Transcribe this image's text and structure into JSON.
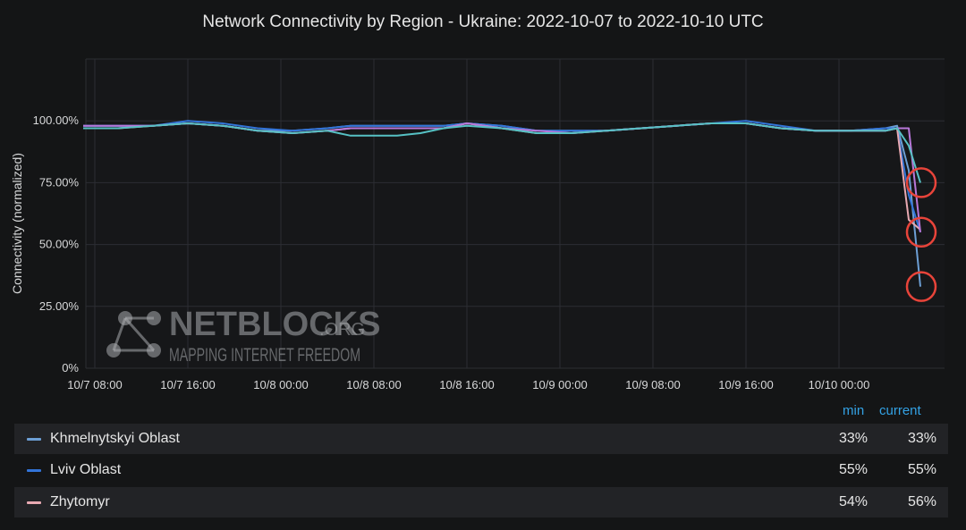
{
  "chart_data": {
    "type": "line",
    "title": "Network Connectivity by Region - Ukraine: 2022-10-07 to 2022-10-10 UTC",
    "ylabel": "Connectivity (normalized)",
    "xlabel": "",
    "y_ticks": [
      "0%",
      "25.00%",
      "50.00%",
      "75.00%",
      "100.00%"
    ],
    "ylim": [
      0,
      125
    ],
    "x_ticks": [
      "10/7 08:00",
      "10/7 16:00",
      "10/8 00:00",
      "10/8 08:00",
      "10/8 16:00",
      "10/9 00:00",
      "10/9 08:00",
      "10/9 16:00",
      "10/10 00:00"
    ],
    "x": [
      "10/7 07:00",
      "10/7 10:00",
      "10/7 13:00",
      "10/7 16:00",
      "10/7 19:00",
      "10/7 22:00",
      "10/8 01:00",
      "10/8 04:00",
      "10/8 06:00",
      "10/8 08:00",
      "10/8 10:00",
      "10/8 12:00",
      "10/8 14:00",
      "10/8 16:00",
      "10/8 19:00",
      "10/8 22:00",
      "10/9 01:00",
      "10/9 04:00",
      "10/9 07:00",
      "10/9 10:00",
      "10/9 13:00",
      "10/9 16:00",
      "10/9 19:00",
      "10/9 22:00",
      "10/10 01:00",
      "10/10 04:00",
      "10/10 05:00",
      "10/10 06:00",
      "10/10 07:00"
    ],
    "grid": true,
    "legend_placement": "bottom table",
    "legend_headers": {
      "min": "min",
      "current": "current"
    },
    "annotations": [
      "red circles around the final values at about 75%, 55% and 33%"
    ],
    "series": [
      {
        "name": "Khmelnytskyi Oblast",
        "color": "#6d9fd5",
        "min": "33%",
        "current": "33%",
        "values": [
          98,
          98,
          98,
          99,
          98,
          96,
          96,
          97,
          98,
          98,
          98,
          98,
          98,
          99,
          98,
          96,
          96,
          96,
          97,
          98,
          99,
          99,
          97,
          96,
          96,
          97,
          98,
          80,
          33
        ]
      },
      {
        "name": "Lviv Oblast",
        "color": "#3274d9",
        "min": "55%",
        "current": "55%",
        "values": [
          98,
          98,
          98,
          100,
          99,
          97,
          96,
          97,
          98,
          98,
          98,
          98,
          98,
          99,
          98,
          96,
          96,
          96,
          97,
          98,
          99,
          100,
          98,
          96,
          96,
          97,
          97,
          70,
          55
        ]
      },
      {
        "name": "Zhytomyr",
        "color": "#e8a9b2",
        "min": "54%",
        "current": "56%",
        "values": [
          97,
          97,
          98,
          99,
          98,
          96,
          95,
          96,
          97,
          97,
          97,
          97,
          97,
          99,
          97,
          95,
          95,
          96,
          97,
          98,
          99,
          99,
          97,
          96,
          96,
          96,
          97,
          60,
          56
        ]
      },
      {
        "name": "",
        "color": "#b877d9",
        "min": "",
        "current": "",
        "values": [
          98,
          98,
          98,
          99,
          98,
          96,
          95,
          96,
          97,
          97,
          97,
          97,
          97,
          99,
          97,
          96,
          95,
          96,
          97,
          98,
          99,
          99,
          97,
          96,
          96,
          96,
          97,
          97,
          55
        ]
      },
      {
        "name": "",
        "color": "#56c1c4",
        "min": "",
        "current": "",
        "values": [
          97,
          97,
          98,
          99,
          98,
          96,
          95,
          96,
          94,
          94,
          94,
          95,
          97,
          98,
          97,
          95,
          95,
          96,
          97,
          98,
          99,
          99,
          97,
          96,
          96,
          96,
          97,
          90,
          75
        ]
      }
    ]
  },
  "watermark": {
    "brand": "NETBLOCKS",
    "tld": ".ORG",
    "tagline": "MAPPING INTERNET FREEDOM"
  }
}
